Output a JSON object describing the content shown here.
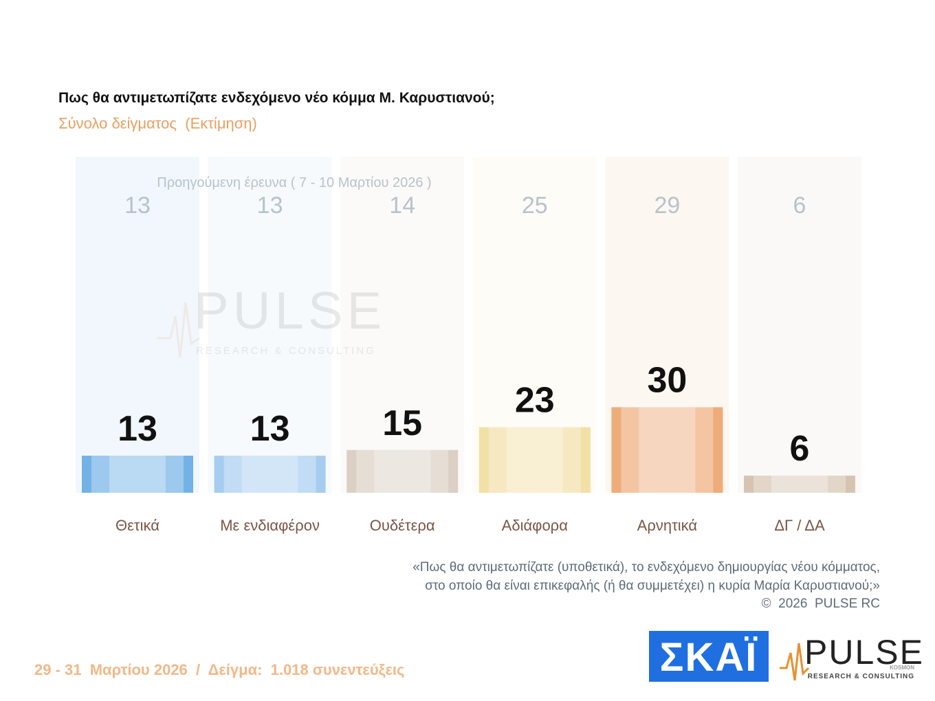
{
  "chart_data": {
    "type": "bar",
    "title": "Πως θα αντιμετωπίζατε ενδεχόμενο νέο κόμμα Μ. Καρυστιανού;",
    "subtitle": "Σύνολο δείγματος  (Εκτίμηση)",
    "previous_label": "Προηγούμενη έρευνα ( 7 - 10 Μαρτίου 2026 )",
    "categories": [
      "Θετικά",
      "Με ενδιαφέρον",
      "Ουδέτερα",
      "Αδιάφορα",
      "Αρνητικά",
      "ΔΓ / ΔΑ"
    ],
    "values": [
      13,
      13,
      15,
      23,
      30,
      6
    ],
    "previous_values": [
      13,
      13,
      14,
      25,
      29,
      6
    ],
    "colors": [
      "#72b2e6",
      "#a6cdf0",
      "#dccfc3",
      "#f2e0a6",
      "#eeac7a",
      "#d6c4b2"
    ],
    "note": [
      "«Πως θα αντιμετωπίζατε (υποθετικά), το ενδεχόμενο δημιουργίας νέου κόμματος,",
      "στο οποίο θα είναι επικεφαλής (ή θα συμμετέχει) η κυρία Μαρία Καρυστιανού;»",
      "©  2026  PULSE RC"
    ],
    "footer": "29 - 31  Μαρτίου 2026  /  Δείγμα:  1.018 συνεντεύξεις",
    "logos": {
      "skai": "ΣΚΑΪ",
      "pulse": "PULSE",
      "pulse_sub": "KOSMON",
      "pulse_tagline": "RESEARCH & CONSULTING"
    }
  }
}
